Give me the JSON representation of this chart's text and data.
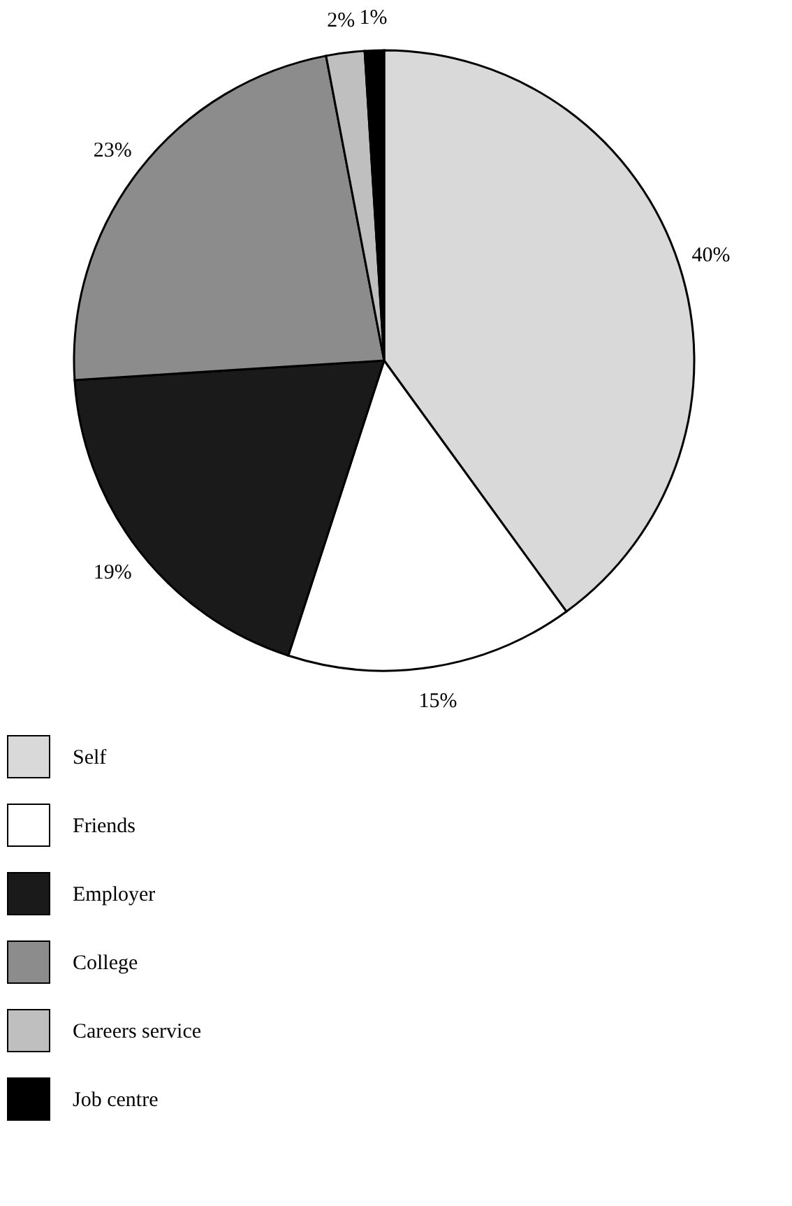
{
  "chart_data": {
    "type": "pie",
    "categories": [
      "Self",
      "Friends",
      "Employer",
      "College",
      "Careers service",
      "Job centre"
    ],
    "values": [
      40,
      15,
      19,
      23,
      2,
      1
    ],
    "colors": [
      "#d9d9d9",
      "#ffffff",
      "#1a1a1a",
      "#8c8c8c",
      "#bfbfbf",
      "#000000"
    ],
    "value_labels": [
      "40%",
      "15%",
      "19%",
      "23%",
      "2%",
      "1%"
    ],
    "legend": "bottom"
  }
}
